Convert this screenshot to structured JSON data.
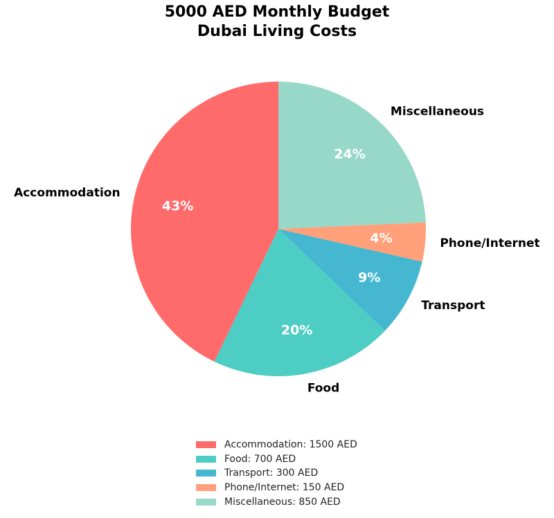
{
  "chart_data": {
    "type": "pie",
    "title": "5000 AED Monthly Budget\nDubai Living Costs",
    "title_lines": [
      "5000 AED Monthly Budget",
      "Dubai Living Costs"
    ],
    "categories": [
      "Accommodation",
      "Food",
      "Transport",
      "Phone/Internet",
      "Miscellaneous"
    ],
    "values": [
      1500,
      700,
      300,
      150,
      850
    ],
    "percent_labels": [
      "43%",
      "20%",
      "9%",
      "4%",
      "24%"
    ],
    "colors": [
      "#FF6B6B",
      "#4ECDC4",
      "#45B7D1",
      "#FFA07A",
      "#98D8C8"
    ],
    "legend": [
      "Accommodation: 1500 AED",
      "Food: 700 AED",
      "Transport: 300 AED",
      "Phone/Internet: 150 AED",
      "Miscellaneous: 850 AED"
    ],
    "legend_position": "lower center",
    "start_angle": 90,
    "direction": "counterclockwise"
  }
}
